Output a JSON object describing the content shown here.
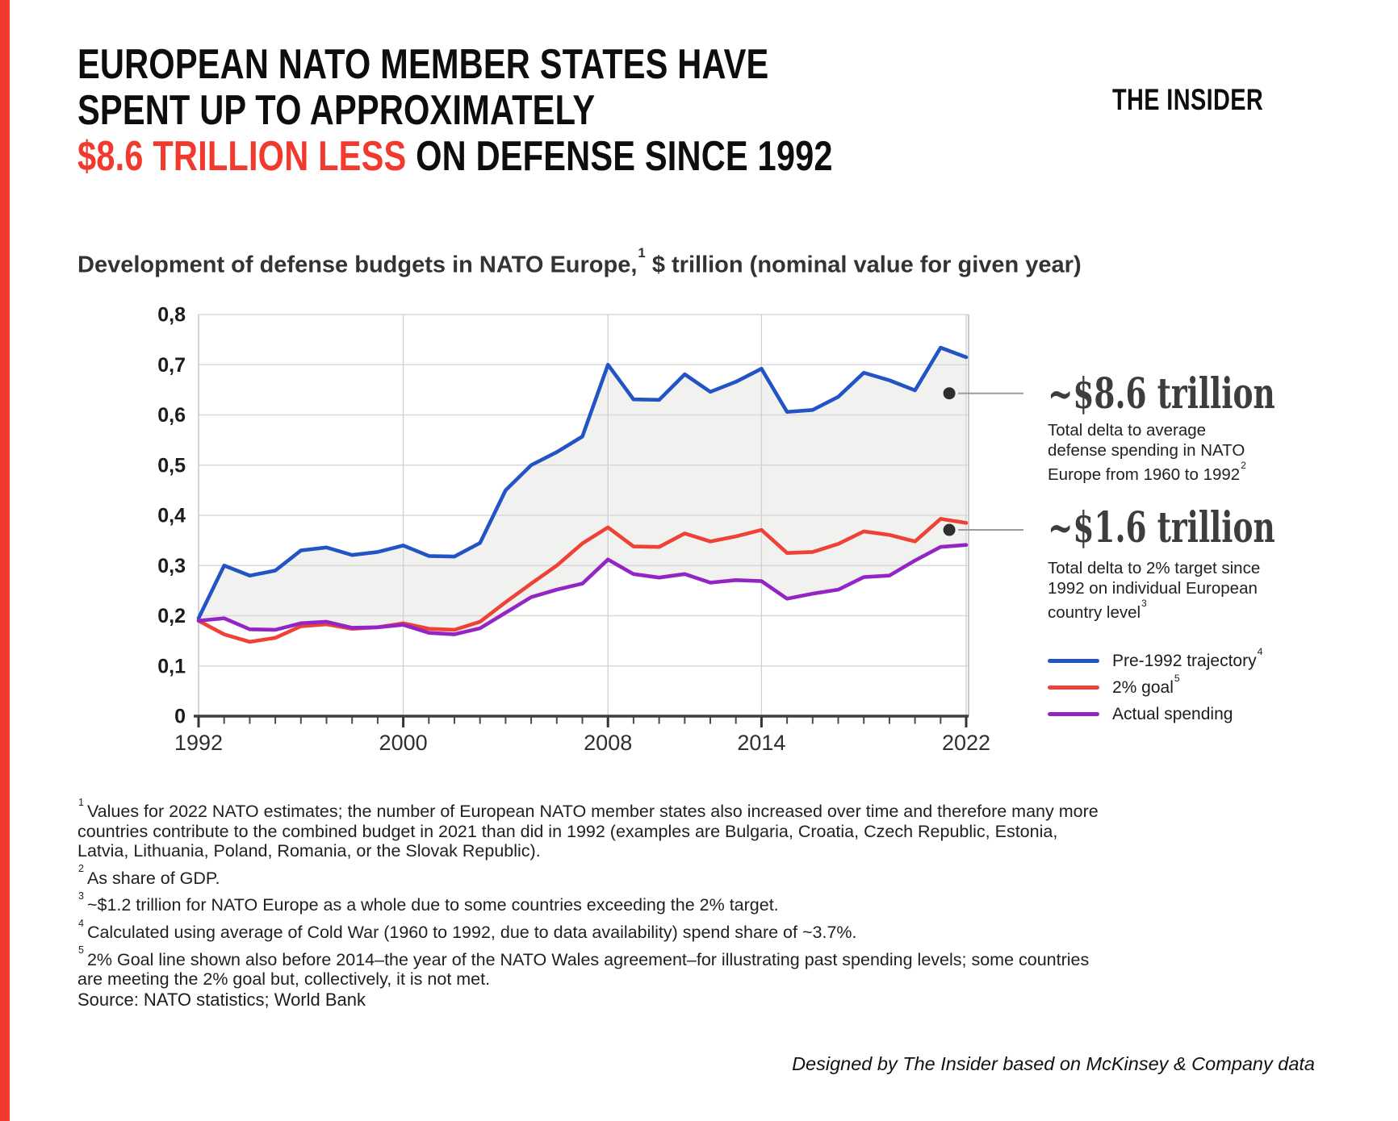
{
  "page": {
    "background": "#ffffff",
    "accent_bar_color": "#f2392e"
  },
  "brand": {
    "logo_text": "THE INSIDER"
  },
  "header": {
    "title_line1": "EUROPEAN NATO MEMBER STATES HAVE",
    "title_line2": "SPENT UP TO APPROXIMATELY",
    "title_line3_highlight": "$8.6 TRILLION LESS",
    "title_line3_rest": " ON DEFENSE SINCE 1992",
    "highlight_color": "#f2392e"
  },
  "subtitle": {
    "pre": "Development of defense budgets in NATO Europe,",
    "sup": "1",
    "post": " $ trillion (nominal value for given year)"
  },
  "chart_data": {
    "type": "line",
    "title": "Development of defense budgets in NATO Europe, $ trillion (nominal value for given year)",
    "xlabel": "",
    "ylabel": "",
    "ylim": [
      0,
      0.8
    ],
    "grid": true,
    "legend_position": "right",
    "x": [
      1992,
      1993,
      1994,
      1995,
      1996,
      1997,
      1998,
      1999,
      2000,
      2001,
      2002,
      2003,
      2004,
      2005,
      2006,
      2007,
      2008,
      2009,
      2010,
      2011,
      2012,
      2013,
      2014,
      2015,
      2016,
      2017,
      2018,
      2019,
      2020,
      2021,
      2022
    ],
    "x_tick_labels": [
      1992,
      2000,
      2008,
      2014,
      2022
    ],
    "y_tick_labels": [
      "0",
      "0,1",
      "0,2",
      "0,3",
      "0,4",
      "0,5",
      "0,6",
      "0,7",
      "0,8"
    ],
    "series": [
      {
        "name": "Pre-1992 trajectory",
        "color": "#2254c5",
        "values": [
          0.195,
          0.3,
          0.28,
          0.29,
          0.33,
          0.336,
          0.321,
          0.327,
          0.34,
          0.319,
          0.318,
          0.345,
          0.45,
          0.5,
          0.526,
          0.557,
          0.7,
          0.631,
          0.63,
          0.681,
          0.646,
          0.666,
          0.692,
          0.606,
          0.61,
          0.636,
          0.684,
          0.669,
          0.649,
          0.734,
          0.715
        ]
      },
      {
        "name": "2% goal",
        "color": "#ee4237",
        "values": [
          0.19,
          0.163,
          0.148,
          0.156,
          0.179,
          0.183,
          0.174,
          0.177,
          0.185,
          0.174,
          0.172,
          0.188,
          0.227,
          0.264,
          0.3,
          0.344,
          0.376,
          0.338,
          0.337,
          0.364,
          0.348,
          0.358,
          0.371,
          0.325,
          0.327,
          0.343,
          0.368,
          0.361,
          0.348,
          0.393,
          0.385
        ]
      },
      {
        "name": "Actual spending",
        "color": "#9225c4",
        "values": [
          0.19,
          0.195,
          0.173,
          0.172,
          0.185,
          0.188,
          0.176,
          0.177,
          0.182,
          0.166,
          0.163,
          0.175,
          0.206,
          0.237,
          0.252,
          0.264,
          0.312,
          0.283,
          0.276,
          0.283,
          0.266,
          0.271,
          0.269,
          0.234,
          0.244,
          0.252,
          0.277,
          0.28,
          0.31,
          0.337,
          0.341
        ]
      }
    ],
    "fill_between": {
      "upper": "Pre-1992 trajectory",
      "lower": "Actual spending",
      "color": "#f1f1ef"
    },
    "callouts": [
      {
        "year": 2021.34,
        "value": 0.643,
        "label": "~$8.6 trillion"
      },
      {
        "year": 2021.34,
        "value": 0.371,
        "label": "~$1.6 trillion"
      }
    ]
  },
  "annotations": [
    {
      "value": "~$8.6 trillion",
      "sup": "2",
      "desc_lines": [
        "Total delta to average",
        "defense spending in NATO",
        "Europe from 1960 to 1992"
      ]
    },
    {
      "value": "~$1.6 trillion",
      "sup": "3",
      "desc_lines": [
        "Total delta to 2% target since",
        "1992 on individual European",
        "country level"
      ]
    }
  ],
  "legend": [
    {
      "label": "Pre-1992 trajectory",
      "sup": "4",
      "color": "#2254c5"
    },
    {
      "label": "2% goal",
      "sup": "5",
      "color": "#ee4237"
    },
    {
      "label": "Actual spending",
      "sup": "",
      "color": "#9225c4"
    }
  ],
  "footnotes": [
    {
      "sup": "1",
      "text": "Values for 2022 NATO estimates; the number of European NATO member states also increased over time and therefore many more countries contribute to the combined budget in 2021 than did in 1992 (examples are Bulgaria, Croatia, Czech Republic, Estonia, Latvia, Lithuania, Poland, Romania, or the Slovak Republic)."
    },
    {
      "sup": "2",
      "text": "As share of GDP."
    },
    {
      "sup": "3",
      "text": "~$1.2 trillion for NATO Europe as a whole due to some countries exceeding the 2% target."
    },
    {
      "sup": "4",
      "text": "Calculated using average of Cold War (1960 to 1992, due to data availability) spend share of ~3.7%."
    },
    {
      "sup": "5",
      "text": "2% Goal line shown also before 2014–the year of the NATO Wales agreement–for illustrating past spending levels; some countries are meeting the 2% goal but, collectively, it is not met."
    }
  ],
  "source": "Source: NATO statistics; World Bank",
  "credit": "Designed by The Insider based on McKinsey & Company data"
}
